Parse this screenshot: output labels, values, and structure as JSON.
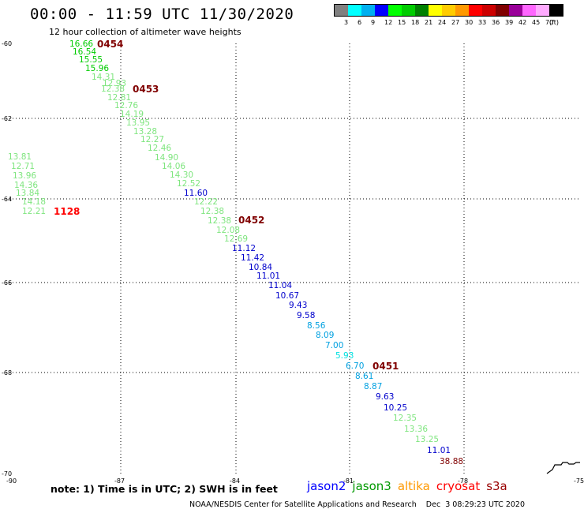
{
  "header": {
    "title": "00:00 - 11:59 UTC 11/30/2020",
    "subtitle": "12 hour collection of altimeter wave heights"
  },
  "legend": {
    "unit": "(ft)",
    "bins": [
      {
        "label": "3",
        "color": "#808080"
      },
      {
        "label": "6",
        "color": "#00ffff"
      },
      {
        "label": "9",
        "color": "#00b0f0"
      },
      {
        "label": "12",
        "color": "#0000ff"
      },
      {
        "label": "15",
        "color": "#00ff00"
      },
      {
        "label": "18",
        "color": "#00cc00"
      },
      {
        "label": "21",
        "color": "#008000"
      },
      {
        "label": "24",
        "color": "#ffff00"
      },
      {
        "label": "27",
        "color": "#ffcc00"
      },
      {
        "label": "30",
        "color": "#ff9900"
      },
      {
        "label": "33",
        "color": "#ff0000"
      },
      {
        "label": "36",
        "color": "#cc0000"
      },
      {
        "label": "39",
        "color": "#800000"
      },
      {
        "label": "42",
        "color": "#990099"
      },
      {
        "label": "45",
        "color": "#ff66ff"
      },
      {
        "label": "70",
        "color": "#ffaaff"
      },
      {
        "label": "",
        "color": "#000000"
      }
    ]
  },
  "map": {
    "lon_range": [
      -90,
      -75
    ],
    "lat_range": [
      -70,
      -60
    ],
    "lon_ticks": [
      "-90",
      "-87",
      "-84",
      "-81",
      "-78",
      "-75"
    ],
    "lat_ticks": [
      "-60",
      "-62",
      "-64",
      "-66",
      "-68",
      "-70"
    ],
    "passes": [
      {
        "label": "0454",
        "color": "#800000"
      },
      {
        "label": "0453",
        "color": "#800000"
      },
      {
        "label": "0452",
        "color": "#800000"
      },
      {
        "label": "0451",
        "color": "#800000"
      },
      {
        "label": "1128",
        "color": "#ff0000"
      }
    ],
    "wave_labels": [
      {
        "text": "16.66",
        "color": "#00cc00"
      },
      {
        "text": "16.54",
        "color": "#00cc00"
      },
      {
        "text": "15.55",
        "color": "#00cc00"
      },
      {
        "text": "15.96",
        "color": "#00cc00"
      },
      {
        "text": "14.31",
        "color": "#7fe57f"
      },
      {
        "text": "12.93",
        "color": "#7fe57f"
      },
      {
        "text": "12.38",
        "color": "#7fe57f"
      },
      {
        "text": "12.81",
        "color": "#7fe57f"
      },
      {
        "text": "12.76",
        "color": "#7fe57f"
      },
      {
        "text": "14.19",
        "color": "#7fe57f"
      },
      {
        "text": "13.95",
        "color": "#7fe57f"
      },
      {
        "text": "13.28",
        "color": "#7fe57f"
      },
      {
        "text": "12.27",
        "color": "#7fe57f"
      },
      {
        "text": "12.46",
        "color": "#7fe57f"
      },
      {
        "text": "14.90",
        "color": "#7fe57f"
      },
      {
        "text": "14.06",
        "color": "#7fe57f"
      },
      {
        "text": "14.30",
        "color": "#7fe57f"
      },
      {
        "text": "12.52",
        "color": "#7fe57f"
      },
      {
        "text": "11.60",
        "color": "#0000cc"
      },
      {
        "text": "12.22",
        "color": "#7fe57f"
      },
      {
        "text": "12.38",
        "color": "#7fe57f"
      },
      {
        "text": "12.38",
        "color": "#7fe57f"
      },
      {
        "text": "12.08",
        "color": "#7fe57f"
      },
      {
        "text": "12.69",
        "color": "#7fe57f"
      },
      {
        "text": "11.12",
        "color": "#0000cc"
      },
      {
        "text": "11.42",
        "color": "#0000cc"
      },
      {
        "text": "10.84",
        "color": "#0000cc"
      },
      {
        "text": "11.01",
        "color": "#0000cc"
      },
      {
        "text": "11.04",
        "color": "#0000cc"
      },
      {
        "text": "10.67",
        "color": "#0000cc"
      },
      {
        "text": "9.43",
        "color": "#0000cc"
      },
      {
        "text": "9.58",
        "color": "#0000cc"
      },
      {
        "text": "8.56",
        "color": "#00a0e0"
      },
      {
        "text": "8.09",
        "color": "#00a0e0"
      },
      {
        "text": "7.00",
        "color": "#00a0e0"
      },
      {
        "text": "5.93",
        "color": "#00e0e0"
      },
      {
        "text": "6.70",
        "color": "#00a0e0"
      },
      {
        "text": "8.61",
        "color": "#00a0e0"
      },
      {
        "text": "8.87",
        "color": "#00a0e0"
      },
      {
        "text": "9.63",
        "color": "#0000cc"
      },
      {
        "text": "10.25",
        "color": "#0000cc"
      },
      {
        "text": "12.35",
        "color": "#7fe57f"
      },
      {
        "text": "13.36",
        "color": "#7fe57f"
      },
      {
        "text": "13.25",
        "color": "#7fe57f"
      },
      {
        "text": "11.01",
        "color": "#0000cc"
      },
      {
        "text": "38.88",
        "color": "#800000"
      },
      {
        "text": "13.81",
        "color": "#7fe57f"
      },
      {
        "text": "12.71",
        "color": "#7fe57f"
      },
      {
        "text": "13.96",
        "color": "#7fe57f"
      },
      {
        "text": "14.36",
        "color": "#7fe57f"
      },
      {
        "text": "13.84",
        "color": "#7fe57f"
      },
      {
        "text": "14.18",
        "color": "#7fe57f"
      },
      {
        "text": "12.21",
        "color": "#7fe57f"
      }
    ]
  },
  "note": "note: 1) Time is in UTC; 2) SWH is in feet",
  "satellites": [
    {
      "name": "jason2",
      "color": "#0000ff"
    },
    {
      "name": "jason3",
      "color": "#009900"
    },
    {
      "name": "altika",
      "color": "#ff9900"
    },
    {
      "name": "cryosat",
      "color": "#ff0000"
    },
    {
      "name": "s3a",
      "color": "#990000"
    }
  ],
  "footer": "NOAA/NESDIS Center for Satellite Applications and Research    Dec  3 08:29:23 UTC 2020"
}
